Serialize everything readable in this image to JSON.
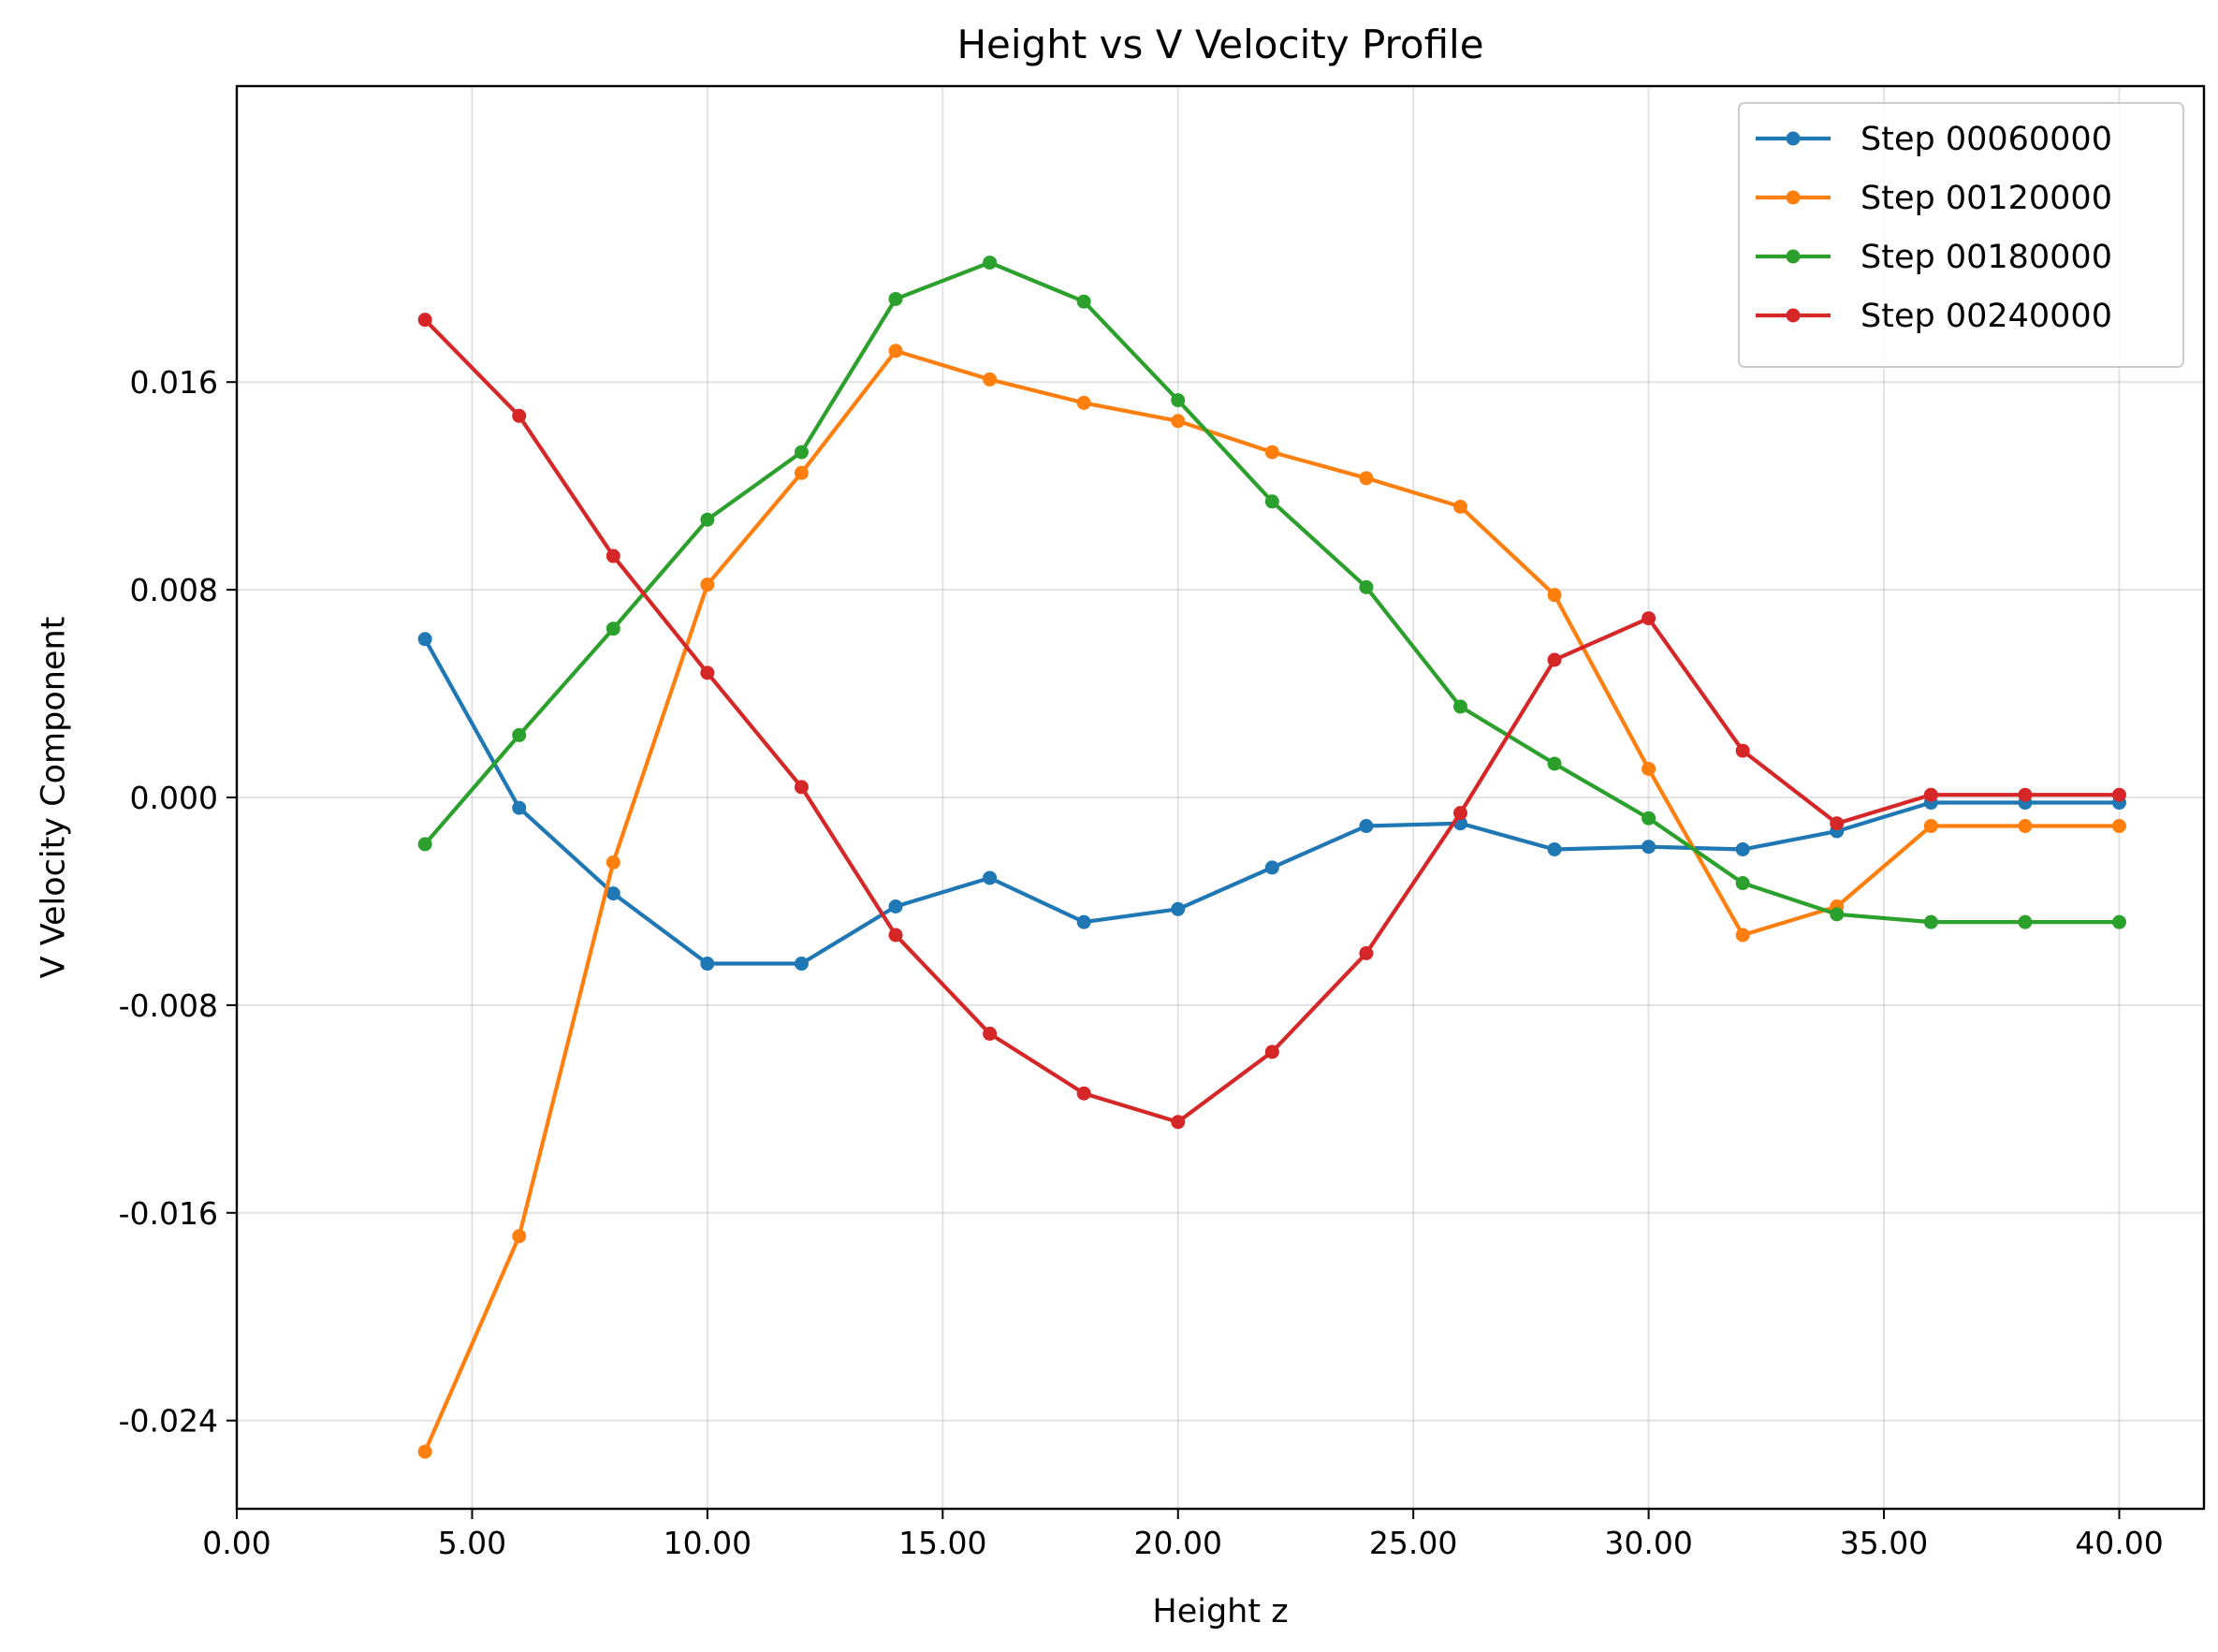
{
  "chart_data": {
    "type": "line",
    "title": "Height vs V Velocity Profile",
    "xlabel": "Height z",
    "ylabel": "V Velocity Component",
    "xlim": [
      0,
      41.8
    ],
    "ylim": [
      -0.0274,
      0.0274
    ],
    "x_ticks": [
      0,
      5,
      10,
      15,
      20,
      25,
      30,
      35,
      40
    ],
    "x_tick_labels": [
      "0.00",
      "5.00",
      "10.00",
      "15.00",
      "20.00",
      "25.00",
      "30.00",
      "35.00",
      "40.00"
    ],
    "y_ticks": [
      -0.024,
      -0.016,
      -0.008,
      0.0,
      0.008,
      0.016
    ],
    "y_tick_labels": [
      "-0.024",
      "-0.016",
      "-0.008",
      "0.000",
      "0.008",
      "0.016"
    ],
    "grid": true,
    "legend_position": "top-right",
    "x": [
      4,
      6,
      8,
      10,
      12,
      14,
      16,
      18,
      20,
      22,
      24,
      26,
      28,
      30,
      32,
      34,
      36,
      38,
      40
    ],
    "series": [
      {
        "name": "Step 00060000",
        "color": "#1f77b4",
        "values": [
          0.0061,
          -0.0004,
          -0.0037,
          -0.0064,
          -0.0064,
          -0.0042,
          -0.0031,
          -0.0048,
          -0.0043,
          -0.0027,
          -0.0011,
          -0.001,
          -0.002,
          -0.0019,
          -0.002,
          -0.0013,
          -0.0002,
          -0.0002,
          -0.0002
        ]
      },
      {
        "name": "Step 00120000",
        "color": "#ff7f0e",
        "values": [
          -0.0252,
          -0.0169,
          -0.0025,
          0.0082,
          0.0125,
          0.0172,
          0.0161,
          0.0152,
          0.0145,
          0.0133,
          0.0123,
          0.0112,
          0.0078,
          0.0011,
          -0.0053,
          -0.0042,
          -0.0011,
          -0.0011,
          -0.0011
        ]
      },
      {
        "name": "Step 00180000",
        "color": "#2ca02c",
        "values": [
          -0.0018,
          0.0024,
          0.0065,
          0.0107,
          0.0133,
          0.0192,
          0.0206,
          0.0191,
          0.0153,
          0.0114,
          0.0081,
          0.0035,
          0.0013,
          -0.0008,
          -0.0033,
          -0.0045,
          -0.0048,
          -0.0048,
          -0.0048
        ]
      },
      {
        "name": "Step 00240000",
        "color": "#d62728",
        "values": [
          0.0184,
          0.0147,
          0.0093,
          0.0048,
          0.0004,
          -0.0053,
          -0.0091,
          -0.0114,
          -0.0125,
          -0.0098,
          -0.006,
          -0.0006,
          0.0053,
          0.0069,
          0.0018,
          -0.001,
          0.0001,
          0.0001,
          0.0001
        ]
      }
    ]
  }
}
